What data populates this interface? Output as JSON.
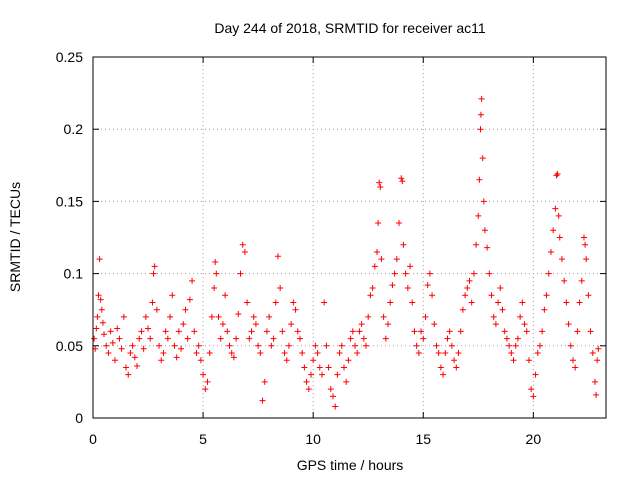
{
  "chart_data": {
    "type": "scatter",
    "title": "Day 244 of 2018, SRMTID for receiver ac11",
    "xlabel": "GPS time / hours",
    "ylabel": "SRMTID / TECUs",
    "xlim": [
      0,
      23.3
    ],
    "ylim": [
      0,
      0.25
    ],
    "x_ticks": [
      0,
      5,
      10,
      15,
      20
    ],
    "x_tick_labels": [
      "0",
      "5",
      "10",
      "15",
      "20"
    ],
    "y_ticks": [
      0,
      0.05,
      0.1,
      0.15,
      0.2,
      0.25
    ],
    "y_tick_labels": [
      "0",
      "0.05",
      "0.1",
      "0.15",
      "0.2",
      "0.25"
    ],
    "grid": true,
    "marker": "+",
    "marker_color": "#ff0000",
    "series": [
      {
        "name": "SRMTID",
        "points": [
          [
            0.05,
            0.055
          ],
          [
            0.1,
            0.048
          ],
          [
            0.15,
            0.062
          ],
          [
            0.2,
            0.07
          ],
          [
            0.25,
            0.085
          ],
          [
            0.3,
            0.11
          ],
          [
            0.35,
            0.082
          ],
          [
            0.4,
            0.075
          ],
          [
            0.45,
            0.066
          ],
          [
            0.5,
            0.058
          ],
          [
            0.6,
            0.05
          ],
          [
            0.7,
            0.045
          ],
          [
            0.8,
            0.06
          ],
          [
            0.9,
            0.052
          ],
          [
            1.0,
            0.04
          ],
          [
            1.1,
            0.062
          ],
          [
            1.2,
            0.055
          ],
          [
            1.3,
            0.048
          ],
          [
            1.4,
            0.07
          ],
          [
            1.5,
            0.035
          ],
          [
            1.6,
            0.03
          ],
          [
            1.7,
            0.045
          ],
          [
            1.8,
            0.05
          ],
          [
            1.9,
            0.042
          ],
          [
            2.0,
            0.036
          ],
          [
            2.1,
            0.055
          ],
          [
            2.2,
            0.06
          ],
          [
            2.3,
            0.048
          ],
          [
            2.4,
            0.07
          ],
          [
            2.5,
            0.062
          ],
          [
            2.6,
            0.055
          ],
          [
            2.7,
            0.08
          ],
          [
            2.75,
            0.1
          ],
          [
            2.8,
            0.105
          ],
          [
            2.9,
            0.075
          ],
          [
            3.0,
            0.05
          ],
          [
            3.1,
            0.04
          ],
          [
            3.2,
            0.045
          ],
          [
            3.3,
            0.06
          ],
          [
            3.4,
            0.055
          ],
          [
            3.5,
            0.07
          ],
          [
            3.6,
            0.085
          ],
          [
            3.7,
            0.05
          ],
          [
            3.8,
            0.042
          ],
          [
            3.9,
            0.06
          ],
          [
            4.0,
            0.048
          ],
          [
            4.1,
            0.065
          ],
          [
            4.2,
            0.075
          ],
          [
            4.3,
            0.055
          ],
          [
            4.4,
            0.082
          ],
          [
            4.5,
            0.095
          ],
          [
            4.6,
            0.06
          ],
          [
            4.7,
            0.045
          ],
          [
            4.8,
            0.05
          ],
          [
            4.9,
            0.04
          ],
          [
            5.0,
            0.03
          ],
          [
            5.1,
            0.02
          ],
          [
            5.2,
            0.025
          ],
          [
            5.3,
            0.045
          ],
          [
            5.4,
            0.07
          ],
          [
            5.5,
            0.09
          ],
          [
            5.55,
            0.108
          ],
          [
            5.6,
            0.1
          ],
          [
            5.7,
            0.07
          ],
          [
            5.8,
            0.055
          ],
          [
            5.9,
            0.065
          ],
          [
            6.0,
            0.085
          ],
          [
            6.1,
            0.06
          ],
          [
            6.2,
            0.05
          ],
          [
            6.3,
            0.045
          ],
          [
            6.4,
            0.042
          ],
          [
            6.5,
            0.055
          ],
          [
            6.6,
            0.072
          ],
          [
            6.7,
            0.1
          ],
          [
            6.8,
            0.12
          ],
          [
            6.9,
            0.115
          ],
          [
            7.0,
            0.08
          ],
          [
            7.1,
            0.055
          ],
          [
            7.2,
            0.06
          ],
          [
            7.3,
            0.07
          ],
          [
            7.4,
            0.065
          ],
          [
            7.5,
            0.05
          ],
          [
            7.6,
            0.045
          ],
          [
            7.7,
            0.012
          ],
          [
            7.8,
            0.025
          ],
          [
            7.9,
            0.06
          ],
          [
            8.0,
            0.07
          ],
          [
            8.1,
            0.05
          ],
          [
            8.2,
            0.055
          ],
          [
            8.3,
            0.08
          ],
          [
            8.4,
            0.112
          ],
          [
            8.5,
            0.09
          ],
          [
            8.6,
            0.06
          ],
          [
            8.7,
            0.045
          ],
          [
            8.8,
            0.04
          ],
          [
            8.9,
            0.05
          ],
          [
            9.0,
            0.065
          ],
          [
            9.1,
            0.08
          ],
          [
            9.2,
            0.075
          ],
          [
            9.3,
            0.06
          ],
          [
            9.4,
            0.055
          ],
          [
            9.5,
            0.045
          ],
          [
            9.6,
            0.035
          ],
          [
            9.7,
            0.025
          ],
          [
            9.8,
            0.02
          ],
          [
            9.9,
            0.03
          ],
          [
            10.0,
            0.04
          ],
          [
            10.1,
            0.05
          ],
          [
            10.2,
            0.045
          ],
          [
            10.3,
            0.035
          ],
          [
            10.4,
            0.03
          ],
          [
            10.5,
            0.08
          ],
          [
            10.6,
            0.05
          ],
          [
            10.7,
            0.035
          ],
          [
            10.8,
            0.02
          ],
          [
            10.9,
            0.015
          ],
          [
            11.0,
            0.008
          ],
          [
            11.1,
            0.03
          ],
          [
            11.2,
            0.045
          ],
          [
            11.3,
            0.05
          ],
          [
            11.4,
            0.035
          ],
          [
            11.5,
            0.025
          ],
          [
            11.6,
            0.04
          ],
          [
            11.7,
            0.055
          ],
          [
            11.8,
            0.06
          ],
          [
            11.9,
            0.05
          ],
          [
            12.0,
            0.045
          ],
          [
            12.1,
            0.06
          ],
          [
            12.2,
            0.065
          ],
          [
            12.3,
            0.055
          ],
          [
            12.4,
            0.05
          ],
          [
            12.5,
            0.07
          ],
          [
            12.6,
            0.085
          ],
          [
            12.7,
            0.09
          ],
          [
            12.8,
            0.105
          ],
          [
            12.9,
            0.115
          ],
          [
            12.95,
            0.135
          ],
          [
            13.0,
            0.163
          ],
          [
            13.05,
            0.16
          ],
          [
            13.1,
            0.11
          ],
          [
            13.2,
            0.07
          ],
          [
            13.3,
            0.055
          ],
          [
            13.4,
            0.065
          ],
          [
            13.5,
            0.08
          ],
          [
            13.6,
            0.092
          ],
          [
            13.7,
            0.1
          ],
          [
            13.8,
            0.11
          ],
          [
            13.9,
            0.135
          ],
          [
            14.0,
            0.166
          ],
          [
            14.05,
            0.164
          ],
          [
            14.1,
            0.12
          ],
          [
            14.2,
            0.1
          ],
          [
            14.3,
            0.09
          ],
          [
            14.4,
            0.105
          ],
          [
            14.5,
            0.08
          ],
          [
            14.6,
            0.06
          ],
          [
            14.7,
            0.05
          ],
          [
            14.8,
            0.045
          ],
          [
            14.9,
            0.06
          ],
          [
            15.0,
            0.055
          ],
          [
            15.1,
            0.07
          ],
          [
            15.2,
            0.092
          ],
          [
            15.3,
            0.1
          ],
          [
            15.4,
            0.085
          ],
          [
            15.5,
            0.065
          ],
          [
            15.6,
            0.05
          ],
          [
            15.7,
            0.045
          ],
          [
            15.8,
            0.035
          ],
          [
            15.9,
            0.03
          ],
          [
            16.0,
            0.045
          ],
          [
            16.1,
            0.055
          ],
          [
            16.2,
            0.06
          ],
          [
            16.3,
            0.05
          ],
          [
            16.4,
            0.04
          ],
          [
            16.5,
            0.035
          ],
          [
            16.6,
            0.045
          ],
          [
            16.7,
            0.06
          ],
          [
            16.8,
            0.075
          ],
          [
            16.9,
            0.085
          ],
          [
            17.0,
            0.09
          ],
          [
            17.1,
            0.095
          ],
          [
            17.2,
            0.08
          ],
          [
            17.3,
            0.1
          ],
          [
            17.4,
            0.12
          ],
          [
            17.5,
            0.14
          ],
          [
            17.55,
            0.165
          ],
          [
            17.6,
            0.2
          ],
          [
            17.62,
            0.21
          ],
          [
            17.65,
            0.221
          ],
          [
            17.7,
            0.18
          ],
          [
            17.75,
            0.15
          ],
          [
            17.8,
            0.13
          ],
          [
            17.9,
            0.118
          ],
          [
            18.0,
            0.1
          ],
          [
            18.1,
            0.085
          ],
          [
            18.2,
            0.07
          ],
          [
            18.3,
            0.065
          ],
          [
            18.4,
            0.08
          ],
          [
            18.5,
            0.09
          ],
          [
            18.6,
            0.075
          ],
          [
            18.7,
            0.06
          ],
          [
            18.8,
            0.055
          ],
          [
            18.9,
            0.05
          ],
          [
            19.0,
            0.045
          ],
          [
            19.1,
            0.04
          ],
          [
            19.2,
            0.05
          ],
          [
            19.3,
            0.055
          ],
          [
            19.4,
            0.07
          ],
          [
            19.5,
            0.08
          ],
          [
            19.6,
            0.065
          ],
          [
            19.7,
            0.06
          ],
          [
            19.8,
            0.04
          ],
          [
            19.9,
            0.02
          ],
          [
            20.0,
            0.015
          ],
          [
            20.1,
            0.03
          ],
          [
            20.2,
            0.045
          ],
          [
            20.3,
            0.05
          ],
          [
            20.4,
            0.06
          ],
          [
            20.5,
            0.075
          ],
          [
            20.6,
            0.085
          ],
          [
            20.7,
            0.1
          ],
          [
            20.8,
            0.115
          ],
          [
            20.9,
            0.13
          ],
          [
            21.0,
            0.145
          ],
          [
            21.05,
            0.168
          ],
          [
            21.1,
            0.169
          ],
          [
            21.15,
            0.14
          ],
          [
            21.2,
            0.125
          ],
          [
            21.3,
            0.11
          ],
          [
            21.4,
            0.095
          ],
          [
            21.5,
            0.08
          ],
          [
            21.6,
            0.065
          ],
          [
            21.7,
            0.05
          ],
          [
            21.8,
            0.04
          ],
          [
            21.9,
            0.035
          ],
          [
            22.0,
            0.06
          ],
          [
            22.1,
            0.08
          ],
          [
            22.2,
            0.095
          ],
          [
            22.3,
            0.125
          ],
          [
            22.35,
            0.12
          ],
          [
            22.4,
            0.11
          ],
          [
            22.5,
            0.085
          ],
          [
            22.6,
            0.06
          ],
          [
            22.7,
            0.045
          ],
          [
            22.8,
            0.025
          ],
          [
            22.85,
            0.016
          ],
          [
            22.9,
            0.04
          ],
          [
            22.95,
            0.048
          ]
        ]
      }
    ]
  }
}
